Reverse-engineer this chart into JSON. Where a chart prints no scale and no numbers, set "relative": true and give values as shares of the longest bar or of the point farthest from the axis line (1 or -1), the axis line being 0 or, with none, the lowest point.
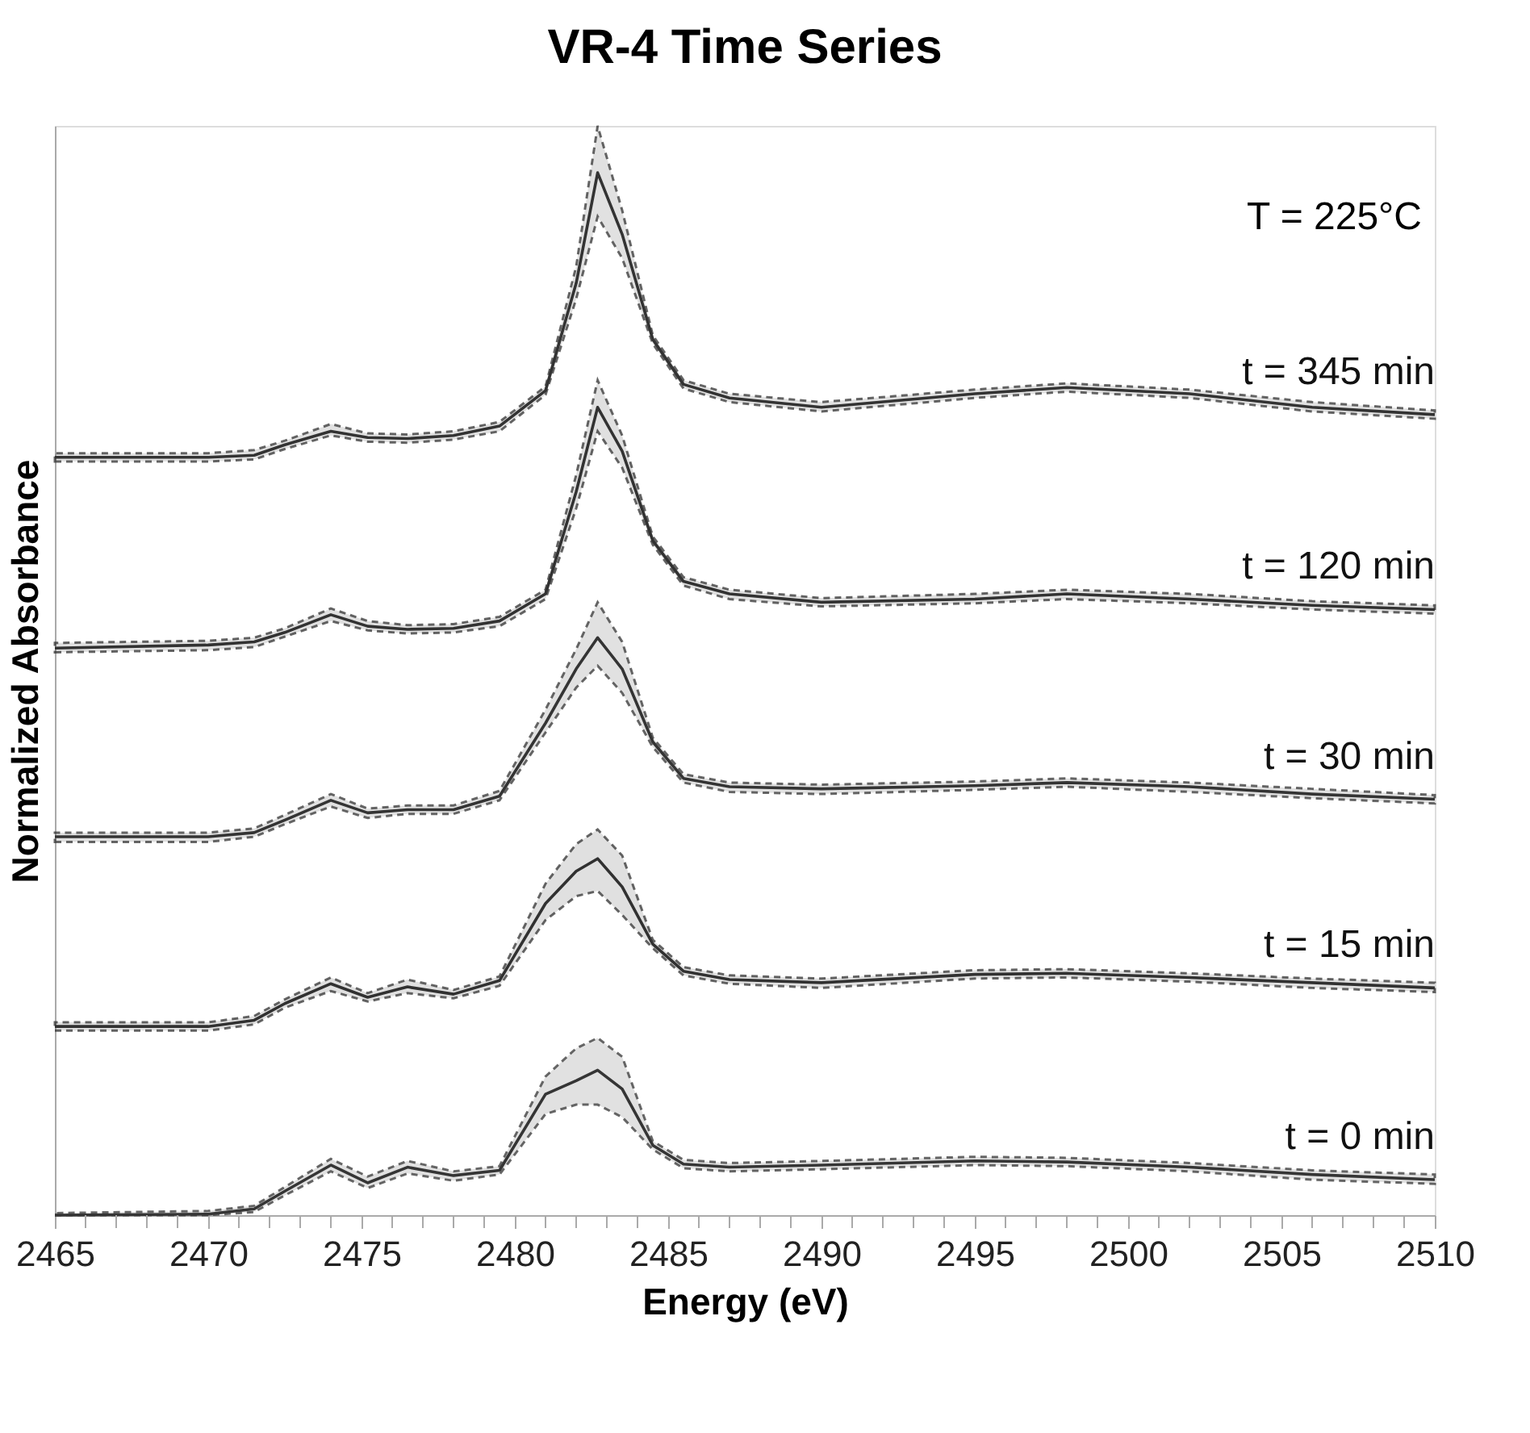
{
  "chart_data": {
    "type": "line",
    "title": "VR-4 Time Series",
    "xlabel": "Energy (eV)",
    "ylabel": "Normalized Absorbance",
    "relative": true,
    "grid": false,
    "legend": false,
    "marker": "none",
    "tick_labels": "x",
    "line_style": "solid",
    "annotations": [
      "T = 225°C"
    ],
    "xlim": [
      2465,
      2510
    ],
    "xticks": [
      2465,
      {
        "value": 2466,
        "label": null
      },
      {
        "value": 2467,
        "label": null
      },
      {
        "value": 2468,
        "label": null
      },
      {
        "value": 2469,
        "label": null
      },
      2470,
      {
        "value": 2471,
        "label": null
      },
      {
        "value": 2472,
        "label": null
      },
      {
        "value": 2473,
        "label": null
      },
      {
        "value": 2474,
        "label": null
      },
      2475,
      {
        "value": 2476,
        "label": null
      },
      {
        "value": 2477,
        "label": null
      },
      {
        "value": 2478,
        "label": null
      },
      {
        "value": 2479,
        "label": null
      },
      2480,
      {
        "value": 2481,
        "label": null
      },
      {
        "value": 2482,
        "label": null
      },
      {
        "value": 2483,
        "label": null
      },
      {
        "value": 2484,
        "label": null
      },
      2485,
      {
        "value": 2486,
        "label": null
      },
      {
        "value": 2487,
        "label": null
      },
      {
        "value": 2488,
        "label": null
      },
      {
        "value": 2489,
        "label": null
      },
      2490,
      {
        "value": 2491,
        "label": null
      },
      {
        "value": 2492,
        "label": null
      },
      {
        "value": 2493,
        "label": null
      },
      {
        "value": 2494,
        "label": null
      },
      2495,
      {
        "value": 2496,
        "label": null
      },
      {
        "value": 2497,
        "label": null
      },
      {
        "value": 2498,
        "label": null
      },
      {
        "value": 2499,
        "label": null
      },
      2500,
      {
        "value": 2501,
        "label": null
      },
      {
        "value": 2502,
        "label": null
      },
      {
        "value": 2503,
        "label": null
      },
      {
        "value": 2504,
        "label": null
      },
      2505,
      {
        "value": 2506,
        "label": null
      },
      {
        "value": 2507,
        "label": null
      },
      {
        "value": 2508,
        "label": null
      },
      {
        "value": 2509,
        "label": null
      },
      2510
    ],
    "x": [
      2465,
      2470,
      2471.5,
      2472.5,
      2474,
      2475.2,
      2476.5,
      2478,
      2479.5,
      2481,
      2482,
      2482.7,
      2483.5,
      2484.5,
      2485.5,
      2487,
      2490,
      2495,
      2498,
      2502,
      2506,
      2510
    ],
    "series": [
      {
        "name": "t = 345 min",
        "color": "#333333",
        "values": [
          0.727,
          0.727,
          0.729,
          0.739,
          0.752,
          0.746,
          0.745,
          0.748,
          0.757,
          0.791,
          0.894,
          1.0,
          0.941,
          0.84,
          0.797,
          0.784,
          0.775,
          0.788,
          0.794,
          0.788,
          0.775,
          0.768
        ],
        "lower": [
          0.723,
          0.723,
          0.725,
          0.735,
          0.748,
          0.742,
          0.741,
          0.744,
          0.752,
          0.787,
          0.879,
          0.958,
          0.918,
          0.836,
          0.793,
          0.78,
          0.771,
          0.784,
          0.79,
          0.784,
          0.771,
          0.764
        ],
        "upper": [
          0.731,
          0.731,
          0.734,
          0.743,
          0.759,
          0.75,
          0.749,
          0.752,
          0.761,
          0.795,
          0.91,
          1.045,
          0.964,
          0.844,
          0.801,
          0.788,
          0.78,
          0.792,
          0.798,
          0.792,
          0.78,
          0.772
        ]
      },
      {
        "name": "t = 120 min",
        "color": "#323232",
        "values": [
          0.544,
          0.547,
          0.55,
          0.559,
          0.576,
          0.565,
          0.562,
          0.563,
          0.57,
          0.596,
          0.694,
          0.775,
          0.733,
          0.647,
          0.608,
          0.596,
          0.588,
          0.591,
          0.596,
          0.591,
          0.585,
          0.581
        ],
        "lower": [
          0.54,
          0.542,
          0.545,
          0.555,
          0.57,
          0.561,
          0.558,
          0.559,
          0.565,
          0.591,
          0.678,
          0.752,
          0.717,
          0.643,
          0.604,
          0.591,
          0.584,
          0.587,
          0.591,
          0.587,
          0.581,
          0.577
        ],
        "upper": [
          0.549,
          0.551,
          0.554,
          0.563,
          0.582,
          0.57,
          0.566,
          0.567,
          0.574,
          0.6,
          0.71,
          0.801,
          0.748,
          0.651,
          0.612,
          0.6,
          0.592,
          0.596,
          0.6,
          0.596,
          0.589,
          0.585
        ]
      },
      {
        "name": "t = 30 min",
        "color": "#343434",
        "values": [
          0.363,
          0.363,
          0.367,
          0.379,
          0.398,
          0.386,
          0.389,
          0.389,
          0.402,
          0.472,
          0.524,
          0.554,
          0.524,
          0.454,
          0.419,
          0.411,
          0.409,
          0.412,
          0.415,
          0.411,
          0.404,
          0.399
        ],
        "lower": [
          0.358,
          0.358,
          0.363,
          0.375,
          0.392,
          0.381,
          0.385,
          0.385,
          0.398,
          0.463,
          0.506,
          0.527,
          0.501,
          0.449,
          0.415,
          0.406,
          0.404,
          0.408,
          0.411,
          0.406,
          0.4,
          0.395
        ],
        "upper": [
          0.367,
          0.367,
          0.371,
          0.384,
          0.404,
          0.39,
          0.393,
          0.393,
          0.407,
          0.485,
          0.543,
          0.588,
          0.55,
          0.458,
          0.423,
          0.415,
          0.413,
          0.416,
          0.419,
          0.415,
          0.409,
          0.403
        ]
      },
      {
        "name": "t = 15 min",
        "color": "#313131",
        "values": [
          0.181,
          0.181,
          0.187,
          0.203,
          0.222,
          0.209,
          0.219,
          0.212,
          0.225,
          0.299,
          0.33,
          0.342,
          0.315,
          0.26,
          0.234,
          0.226,
          0.223,
          0.231,
          0.232,
          0.228,
          0.223,
          0.218
        ],
        "lower": [
          0.177,
          0.177,
          0.183,
          0.199,
          0.215,
          0.205,
          0.213,
          0.208,
          0.22,
          0.283,
          0.306,
          0.311,
          0.288,
          0.256,
          0.23,
          0.222,
          0.218,
          0.227,
          0.228,
          0.224,
          0.218,
          0.214
        ],
        "upper": [
          0.185,
          0.185,
          0.191,
          0.207,
          0.228,
          0.213,
          0.226,
          0.216,
          0.229,
          0.318,
          0.356,
          0.37,
          0.345,
          0.264,
          0.238,
          0.23,
          0.227,
          0.235,
          0.236,
          0.232,
          0.227,
          0.223
        ]
      },
      {
        "name": "t = 0 min",
        "color": "#353535",
        "values": [
          0.0,
          0.001,
          0.006,
          0.023,
          0.048,
          0.031,
          0.046,
          0.038,
          0.043,
          0.116,
          0.129,
          0.139,
          0.121,
          0.067,
          0.049,
          0.046,
          0.048,
          0.052,
          0.051,
          0.046,
          0.039,
          0.034
        ],
        "lower": [
          0.0,
          0.0,
          0.003,
          0.019,
          0.042,
          0.026,
          0.04,
          0.033,
          0.039,
          0.097,
          0.106,
          0.106,
          0.094,
          0.063,
          0.045,
          0.042,
          0.044,
          0.048,
          0.047,
          0.042,
          0.034,
          0.03
        ],
        "upper": [
          0.002,
          0.004,
          0.009,
          0.027,
          0.054,
          0.037,
          0.052,
          0.042,
          0.047,
          0.133,
          0.16,
          0.17,
          0.152,
          0.071,
          0.053,
          0.05,
          0.052,
          0.056,
          0.055,
          0.05,
          0.043,
          0.039
        ]
      }
    ]
  }
}
